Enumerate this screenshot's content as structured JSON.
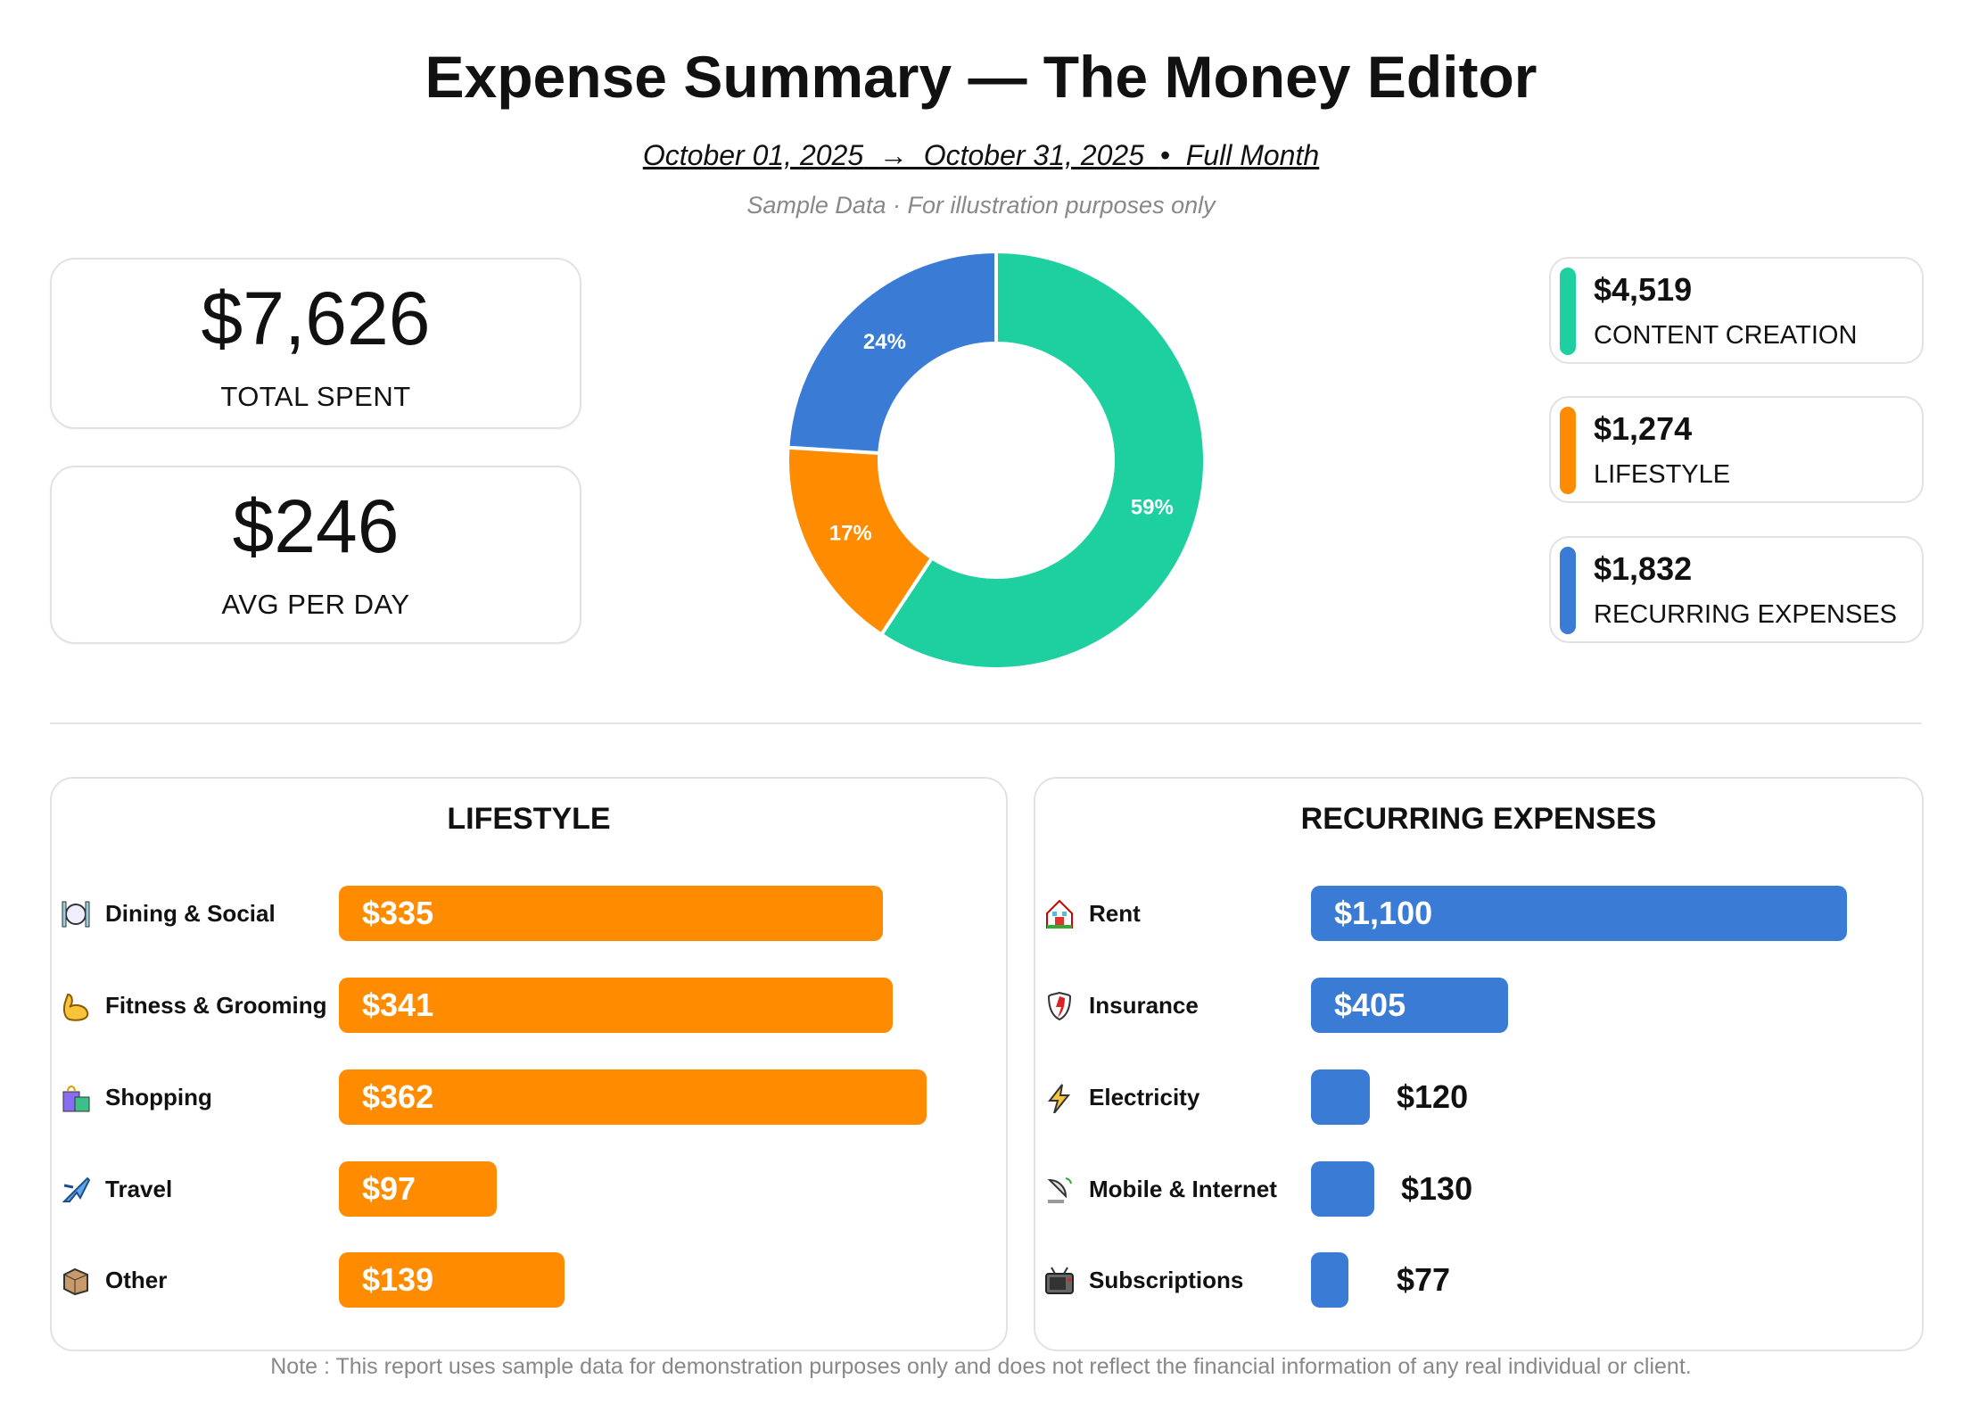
{
  "title": "Expense Summary — The Money Editor",
  "date_range": {
    "start": "October 01, 2025",
    "arrow": "→",
    "end": "October 31, 2025",
    "sep": "•",
    "period": "Full Month"
  },
  "sample_note": "Sample Data · For illustration purposes only",
  "kpis": [
    {
      "value": "$7,626",
      "label": "TOTAL SPENT"
    },
    {
      "value": "$246",
      "label": "AVG PER DAY"
    }
  ],
  "legend": [
    {
      "value": "$4,519",
      "label": "CONTENT CREATION",
      "color": "#1ECFA0"
    },
    {
      "value": "$1,274",
      "label": "LIFESTYLE",
      "color": "#FF8C00"
    },
    {
      "value": "$1,832",
      "label": "RECURRING EXPENSES",
      "color": "#3A7BD5"
    }
  ],
  "chart_data": [
    {
      "type": "pie",
      "donut": true,
      "categories": [
        "CONTENT CREATION",
        "LIFESTYLE",
        "RECURRING EXPENSES"
      ],
      "values": [
        4519,
        1274,
        1832
      ],
      "labels": [
        "59%",
        "17%",
        "24%"
      ],
      "colors": [
        "#1ECFA0",
        "#FF8C00",
        "#3A7BD5"
      ]
    },
    {
      "type": "bar",
      "orientation": "horizontal",
      "title": "LIFESTYLE",
      "categories": [
        "Dining & Social",
        "Fitness & Grooming",
        "Shopping",
        "Travel",
        "Other"
      ],
      "icons": [
        "fork-knife-plate-icon",
        "flexed-biceps-icon",
        "shopping-bags-icon",
        "airplane-icon",
        "package-icon"
      ],
      "values": [
        335,
        341,
        362,
        97,
        139
      ],
      "labels": [
        "$335",
        "$341",
        "$362",
        "$97",
        "$139"
      ],
      "color": "#FF8C00"
    },
    {
      "type": "bar",
      "orientation": "horizontal",
      "title": "RECURRING EXPENSES",
      "categories": [
        "Rent",
        "Insurance",
        "Electricity",
        "Mobile & Internet",
        "Subscriptions"
      ],
      "icons": [
        "house-icon",
        "shield-icon",
        "lightning-icon",
        "satellite-antenna-icon",
        "television-icon"
      ],
      "values": [
        1100,
        405,
        120,
        130,
        77
      ],
      "labels": [
        "$1,100",
        "$405",
        "$120",
        "$130",
        "$77"
      ],
      "color": "#3A7BD5"
    }
  ],
  "footer_note": "Note : This report uses sample data for demonstration purposes only and does not reflect the financial information of any real individual or client."
}
